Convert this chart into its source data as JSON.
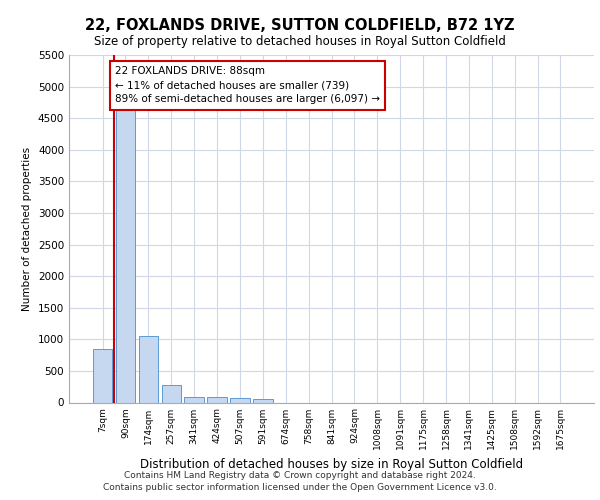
{
  "title": "22, FOXLANDS DRIVE, SUTTON COLDFIELD, B72 1YZ",
  "subtitle": "Size of property relative to detached houses in Royal Sutton Coldfield",
  "xlabel": "Distribution of detached houses by size in Royal Sutton Coldfield",
  "ylabel": "Number of detached properties",
  "footer_line1": "Contains HM Land Registry data © Crown copyright and database right 2024.",
  "footer_line2": "Contains public sector information licensed under the Open Government Licence v3.0.",
  "categories": [
    "7sqm",
    "90sqm",
    "174sqm",
    "257sqm",
    "341sqm",
    "424sqm",
    "507sqm",
    "591sqm",
    "674sqm",
    "758sqm",
    "841sqm",
    "924sqm",
    "1008sqm",
    "1091sqm",
    "1175sqm",
    "1258sqm",
    "1341sqm",
    "1425sqm",
    "1508sqm",
    "1592sqm",
    "1675sqm"
  ],
  "values": [
    850,
    5100,
    1050,
    280,
    90,
    80,
    70,
    50,
    0,
    0,
    0,
    0,
    0,
    0,
    0,
    0,
    0,
    0,
    0,
    0,
    0
  ],
  "bar_color": "#c5d8f0",
  "bar_edge_color": "#5b9bd5",
  "grid_color": "#d0d8e8",
  "background_color": "#ffffff",
  "annotation_line1": "22 FOXLANDS DRIVE: 88sqm",
  "annotation_line2": "← 11% of detached houses are smaller (739)",
  "annotation_line3": "89% of semi-detached houses are larger (6,097) →",
  "annotation_box_color": "#ffffff",
  "annotation_box_edge_color": "#cc0000",
  "red_line_x": 0.5,
  "ylim": [
    0,
    5500
  ],
  "yticks": [
    0,
    500,
    1000,
    1500,
    2000,
    2500,
    3000,
    3500,
    4000,
    4500,
    5000,
    5500
  ]
}
